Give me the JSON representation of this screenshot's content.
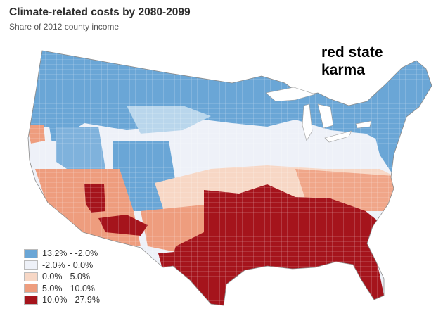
{
  "title": "Climate-related costs by 2080-2099",
  "subtitle": "Share of 2012 county income",
  "annotation": {
    "line1": "red state",
    "line2": "karma"
  },
  "colors": {
    "cat1": "#6aa6d6",
    "cat2": "#eef1f8",
    "cat3": "#f7d7c5",
    "cat4": "#ee9d7e",
    "cat5": "#a5141c",
    "cat1_light": "#b9d6ec"
  },
  "legend": [
    {
      "label": "13.2% - -2.0%",
      "color": "#6aa6d6"
    },
    {
      "label": "-2.0% - 0.0%",
      "color": "#eef1f8"
    },
    {
      "label": "0.0% - 5.0%",
      "color": "#f7d7c5"
    },
    {
      "label": "5.0% - 10.0%",
      "color": "#ee9d7e"
    },
    {
      "label": "10.0% - 27.9%",
      "color": "#a5141c"
    }
  ]
}
